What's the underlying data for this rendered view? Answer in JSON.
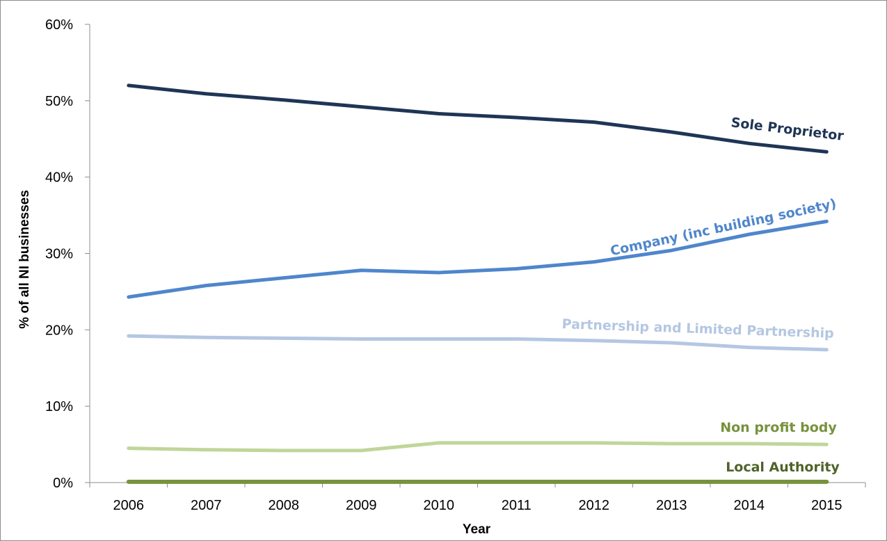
{
  "chart_data": {
    "type": "line",
    "title": "",
    "xlabel": "Year",
    "ylabel": "% of all NI businesses",
    "x": [
      "2006",
      "2007",
      "2008",
      "2009",
      "2010",
      "2011",
      "2012",
      "2013",
      "2014",
      "2015"
    ],
    "ylim": [
      0,
      60
    ],
    "yticks": [
      "0%",
      "10%",
      "20%",
      "30%",
      "40%",
      "50%",
      "60%"
    ],
    "grid": false,
    "legend": "inline labels at right end of each line",
    "series": [
      {
        "name": "Sole Proprietor",
        "color": "#1f3556",
        "values": [
          52.0,
          50.9,
          50.1,
          49.2,
          48.3,
          47.8,
          47.2,
          45.9,
          44.4,
          43.3
        ]
      },
      {
        "name": "Company (inc building society)",
        "color": "#4f86cc",
        "values": [
          24.3,
          25.8,
          26.8,
          27.8,
          27.5,
          28.0,
          28.9,
          30.4,
          32.5,
          34.2
        ]
      },
      {
        "name": "Partnership and Limited Partnership",
        "color": "#b4c7e2",
        "values": [
          19.2,
          19.0,
          18.9,
          18.8,
          18.8,
          18.8,
          18.6,
          18.3,
          17.7,
          17.4
        ]
      },
      {
        "name": "Non profit body",
        "color": "#c0d69a",
        "label_color": "#77923c",
        "values": [
          4.5,
          4.3,
          4.2,
          4.2,
          5.2,
          5.2,
          5.2,
          5.1,
          5.1,
          5.0
        ]
      },
      {
        "name": "Local Authority",
        "color": "#77923c",
        "label_color": "#4f6228",
        "values": [
          0.1,
          0.1,
          0.1,
          0.1,
          0.1,
          0.1,
          0.1,
          0.1,
          0.1,
          0.1
        ]
      }
    ]
  }
}
